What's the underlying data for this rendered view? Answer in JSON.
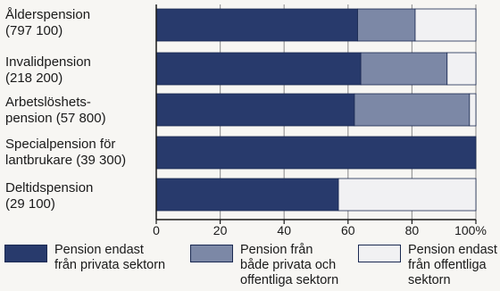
{
  "chart_data": {
    "type": "bar",
    "orientation": "horizontal",
    "stacked": true,
    "title": "",
    "xlabel": "",
    "ylabel": "",
    "categories": [
      "Ålderspension (797 100)",
      "Invalidpension (218 200)",
      "Arbetslöshets-pension (57 800)",
      "Specialpension för lantbrukare (39 300)",
      "Deltidspension (29 100)"
    ],
    "category_lines": [
      [
        "Ålderspension",
        "(797 100)"
      ],
      [
        "Invalidpension",
        "(218 200)"
      ],
      [
        "Arbetslöshets-",
        "pension (57 800)"
      ],
      [
        "Specialpension för",
        "lantbrukare (39 300)"
      ],
      [
        "Deltidspension",
        "(29 100)"
      ]
    ],
    "series": [
      {
        "name": "Pension endast från privata sektorn",
        "color": "#283a6c",
        "values": [
          63,
          64,
          62,
          100,
          57
        ]
      },
      {
        "name": "Pension från både privata och offentliga sektorn",
        "color": "#7c88a6",
        "values": [
          18,
          27,
          36,
          0,
          0
        ]
      },
      {
        "name": "Pension endast från offentliga sektorn",
        "color": "#f1f1f3",
        "values": [
          19,
          9,
          2,
          0,
          43
        ]
      }
    ],
    "xlim": [
      0,
      100
    ],
    "x_ticks": [
      "0",
      "20",
      "40",
      "60",
      "80",
      "100%"
    ],
    "grid": true,
    "legend_position": "bottom"
  },
  "legend": [
    {
      "lines": [
        "Pension endast",
        "från privata sektorn"
      ]
    },
    {
      "lines": [
        "Pension från",
        "både privata och",
        "offentliga sektorn"
      ]
    },
    {
      "lines": [
        "Pension endast",
        "från offentliga",
        "sektorn"
      ]
    }
  ]
}
